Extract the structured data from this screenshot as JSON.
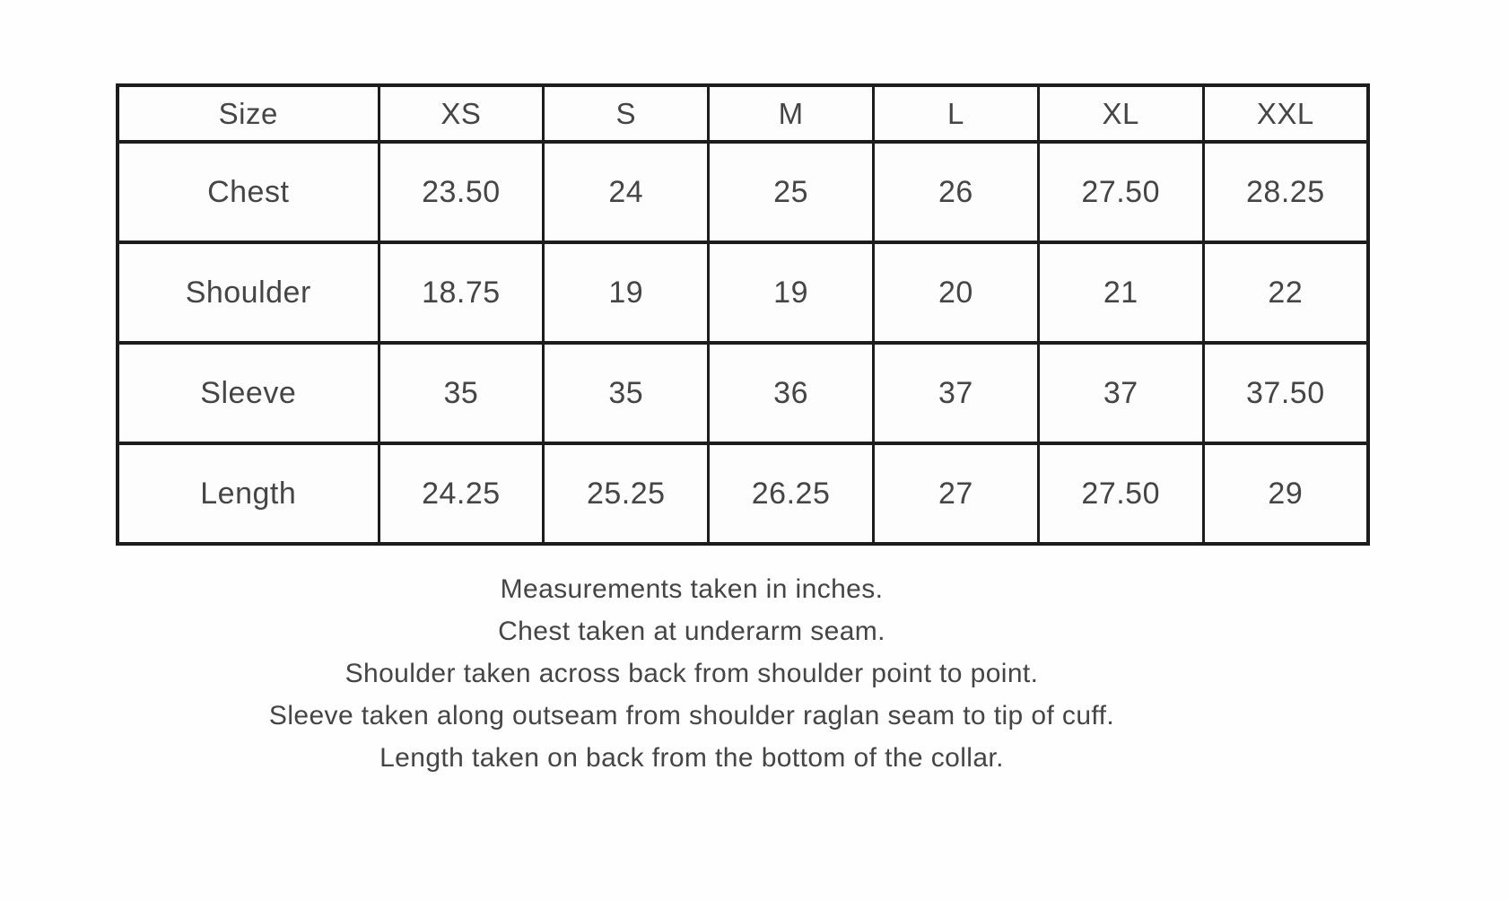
{
  "table": {
    "columns": [
      "Size",
      "XS",
      "S",
      "M",
      "L",
      "XL",
      "XXL"
    ],
    "rows": [
      {
        "label": "Chest",
        "values": [
          "23.50",
          "24",
          "25",
          "26",
          "27.50",
          "28.25"
        ]
      },
      {
        "label": "Shoulder",
        "values": [
          "18.75",
          "19",
          "19",
          "20",
          "21",
          "22"
        ]
      },
      {
        "label": "Sleeve",
        "values": [
          "35",
          "35",
          "36",
          "37",
          "37",
          "37.50"
        ]
      },
      {
        "label": "Length",
        "values": [
          "24.25",
          "25.25",
          "26.25",
          "27",
          "27.50",
          "29"
        ]
      }
    ],
    "units": "inches"
  },
  "notes": [
    "Measurements taken in inches.",
    "Chest taken at underarm seam.",
    "Shoulder taken across back from shoulder point to point.",
    "Sleeve taken along outseam from shoulder raglan seam to tip of cuff.",
    "Length taken on back from the bottom of the collar."
  ],
  "colors": {
    "border": "#1d1d1d",
    "text": "#454545",
    "background": "#fefefe"
  }
}
